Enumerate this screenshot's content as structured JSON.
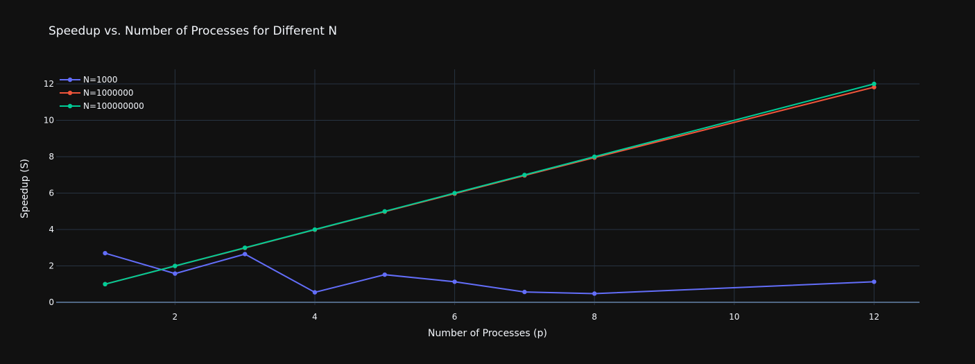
{
  "chart_data": {
    "type": "line",
    "title": "Speedup vs. Number of Processes for Different N",
    "xlabel": "Number of Processes (p)",
    "ylabel": "Speedup (S)",
    "xlim": [
      0.3,
      12.65
    ],
    "ylim": [
      -0.15,
      12.8
    ],
    "xticks": [
      2,
      4,
      6,
      8,
      10,
      12
    ],
    "yticks": [
      0,
      2,
      4,
      6,
      8,
      10,
      12
    ],
    "grid": true,
    "legend_position": "top-left",
    "x": [
      1,
      2,
      3,
      4,
      5,
      6,
      7,
      8,
      12
    ],
    "series": [
      {
        "name": "N=1000",
        "color": "#636efa",
        "values": [
          2.7,
          1.58,
          2.65,
          0.55,
          1.52,
          1.13,
          0.57,
          0.48,
          1.13
        ]
      },
      {
        "name": "N=1000000",
        "color": "#ef553b",
        "values": [
          1.0,
          2.0,
          2.99,
          3.99,
          4.98,
          5.97,
          6.97,
          7.95,
          11.82
        ]
      },
      {
        "name": "N=100000000",
        "color": "#00cc96",
        "values": [
          1.0,
          2.0,
          3.0,
          4.0,
          5.0,
          6.0,
          7.0,
          8.0,
          12.0
        ]
      }
    ]
  }
}
